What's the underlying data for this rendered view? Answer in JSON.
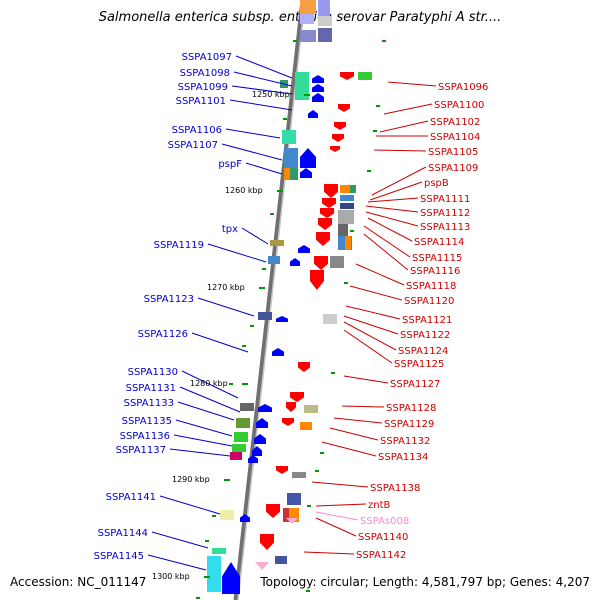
{
  "title": "Salmonella enterica subsp. enterica serovar Paratyphi A str....",
  "footer": {
    "accession": "Accession: NC_011147",
    "summary": "Topology: circular; Length: 4,581,797 bp; Genes: 4,207"
  },
  "colors": {
    "left_label": "#0000cc",
    "right_label": "#cc0000",
    "rna_label": "#ff88cc",
    "backbone": "#8c8c8c",
    "forward_gene": "#0000ff",
    "reverse_gene": "#ff0000",
    "tick": "#009900"
  },
  "map": {
    "kbp_ticks": [
      "1250 kbp",
      "1260 kbp",
      "1270 kbp",
      "1280 kbp",
      "1290 kbp",
      "1300 kbp"
    ],
    "left_genes": [
      "SSPA1097",
      "SSPA1098",
      "SSPA1099",
      "SSPA1101",
      "SSPA1106",
      "SSPA1107",
      "pspF",
      "tpx",
      "SSPA1119",
      "SSPA1123",
      "SSPA1126",
      "SSPA1130",
      "SSPA1131",
      "SSPA1133",
      "SSPA1135",
      "SSPA1136",
      "SSPA1137",
      "SSPA1141",
      "SSPA1144",
      "SSPA1145"
    ],
    "right_genes": [
      "SSPA1096",
      "SSPA1100",
      "SSPA1102",
      "SSPA1104",
      "SSPA1105",
      "SSPA1109",
      "pspB",
      "SSPA1111",
      "SSPA1112",
      "SSPA1113",
      "SSPA1114",
      "SSPA1115",
      "SSPA1116",
      "SSPA1118",
      "SSPA1120",
      "SSPA1121",
      "SSPA1122",
      "SSPA1124",
      "SSPA1125",
      "SSPA1127",
      "SSPA1128",
      "SSPA1129",
      "SSPA1132",
      "SSPA1134",
      "SSPA1138",
      "zntB",
      "SSPAs008",
      "SSPA1140",
      "SSPA1142"
    ]
  }
}
